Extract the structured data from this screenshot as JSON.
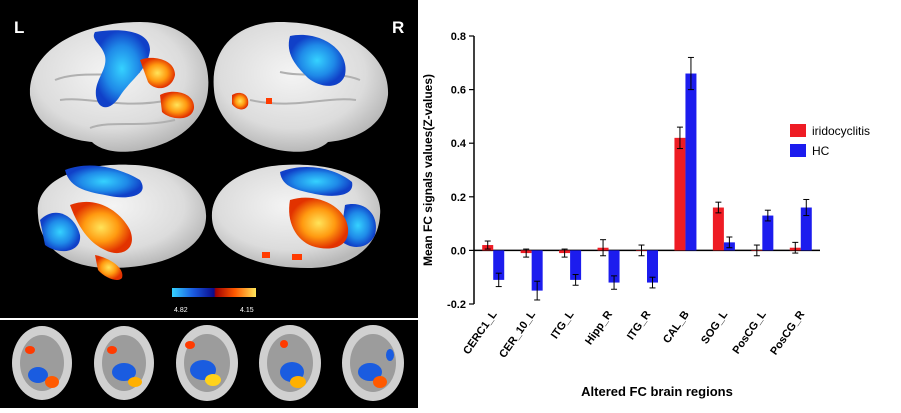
{
  "figure": {
    "hemisphere_left_label": "L",
    "hemisphere_right_label": "R",
    "colorbar_min": "4.82",
    "colorbar_max": "4.15",
    "colors": {
      "warm": "#ff3b00",
      "hot": "#ffd21a",
      "cool": "#1a6fe0",
      "cyan": "#2ec8ff",
      "background": "#000000"
    }
  },
  "chart_data": {
    "type": "bar",
    "title": "",
    "xlabel": "Altered FC brain regions",
    "ylabel": "Mean FC signals values(Z-values)",
    "ylim": [
      -0.2,
      0.8
    ],
    "yticks": [
      "-0.2",
      "0.0",
      "0.2",
      "0.4",
      "0.6",
      "0.8"
    ],
    "grid": false,
    "legend_position": "right",
    "categories": [
      "CERC1_L",
      "CER_10_L",
      "ITG_L",
      "Hipp_R",
      "ITG_R",
      "CAL_B",
      "SOG_L",
      "PosCG_L",
      "PosCG_R"
    ],
    "series": [
      {
        "name": "iridocyclitis",
        "color": "#ee1c24",
        "values": [
          0.02,
          -0.01,
          -0.01,
          0.01,
          0.0,
          0.42,
          0.16,
          0.0,
          0.01
        ],
        "errors": [
          0.015,
          0.015,
          0.015,
          0.03,
          0.02,
          0.04,
          0.02,
          0.02,
          0.02
        ]
      },
      {
        "name": "HC",
        "color": "#1c1cee",
        "values": [
          -0.11,
          -0.15,
          -0.11,
          -0.12,
          -0.12,
          0.66,
          0.03,
          0.13,
          0.16
        ],
        "errors": [
          0.025,
          0.035,
          0.02,
          0.025,
          0.02,
          0.06,
          0.02,
          0.02,
          0.03
        ]
      }
    ]
  }
}
